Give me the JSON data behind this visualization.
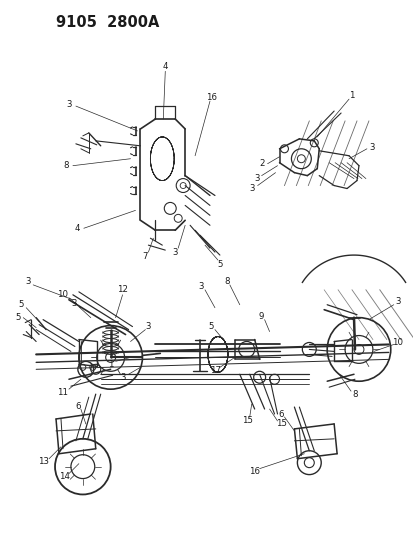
{
  "title": "9105  2800A",
  "bg": "#ffffff",
  "lc": "#2a2a2a",
  "tc": "#1a1a1a",
  "figsize": [
    4.14,
    5.33
  ],
  "dpi": 100,
  "title_fontsize": 10,
  "label_fontsize": 6.2,
  "lw_main": 0.9,
  "lw_thin": 0.5,
  "lw_med": 0.7
}
